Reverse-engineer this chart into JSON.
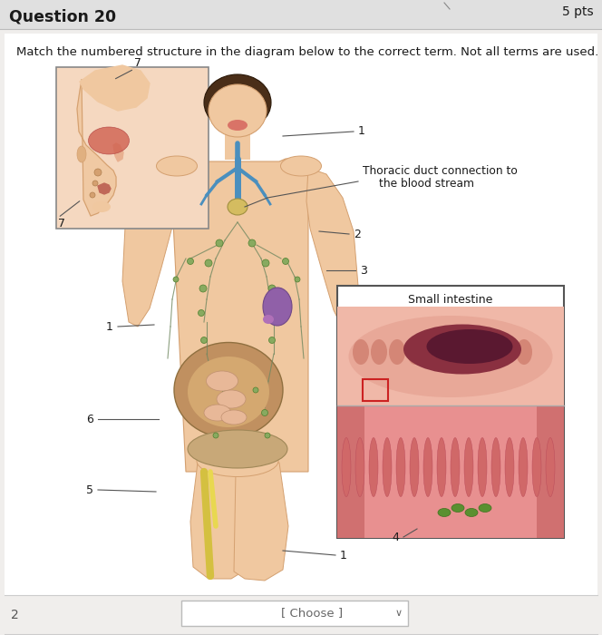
{
  "title": "Question 20",
  "pts_label": "5 pts",
  "instruction": "Match the numbered structure in the diagram below to the correct term. Not all terms are used.",
  "bg_color": "#e8e8e8",
  "content_bg": "#f0eeec",
  "annotation_thoracic_1": "Thoracic duct connection to",
  "annotation_thoracic_2": "the blood stream",
  "annotation_small_intestine": "Small intestine",
  "question_number": "2",
  "dropdown_text": "[ Choose ]",
  "figsize": [
    6.64,
    7.0
  ],
  "dpi": 100,
  "text_color": "#1a1a1a",
  "line_color": "#555555",
  "box_border": "#444444",
  "dropdown_border": "#aaaaaa",
  "bottom_bar_color": "#e0e0e0",
  "header_border": "#bbbbbb",
  "skin_color": "#f0c8a0",
  "skin_edge": "#d4a070",
  "hair_color": "#4a2e18",
  "blue_lymph": "#4a8fbe",
  "teal_lymph": "#3a9090",
  "green_node": "#6aaa50",
  "purple_spleen": "#9060a0",
  "yellow_vessel": "#d4b820",
  "intestine_brown": "#c08040",
  "intestine_pink": "#e8a880",
  "face_bg": "#f5d8c0",
  "nose_red": "#d06050",
  "si_wall_outer": "#e8a898",
  "si_wall_inner": "#c06060",
  "si_lumen": "#602020",
  "villi_pink": "#e08080",
  "villi_dark": "#c05060",
  "green_spot": "#5a8030"
}
